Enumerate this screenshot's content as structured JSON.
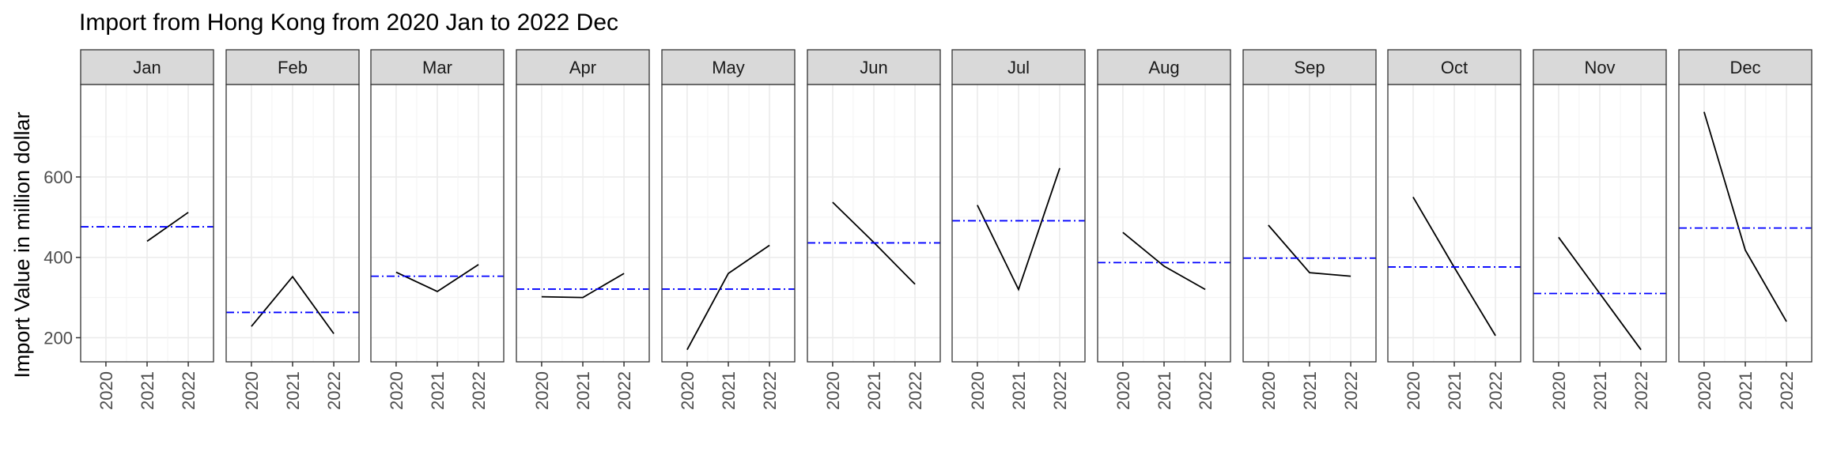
{
  "chart_data": {
    "type": "line",
    "title": "Import from Hong Kong from 2020 Jan to 2022 Dec",
    "ylabel": "Import Value in million dollar",
    "xlabel": "",
    "x": [
      "2020",
      "2021",
      "2022"
    ],
    "ylim": [
      140,
      830
    ],
    "yticks": [
      200,
      400,
      600
    ],
    "grid": true,
    "panels": [
      {
        "label": "Jan",
        "values": [
          null,
          440,
          512
        ],
        "mean": 476
      },
      {
        "label": "Feb",
        "values": [
          228,
          352,
          210
        ],
        "mean": 263
      },
      {
        "label": "Mar",
        "values": [
          363,
          315,
          382
        ],
        "mean": 353
      },
      {
        "label": "Apr",
        "values": [
          302,
          300,
          360
        ],
        "mean": 321
      },
      {
        "label": "May",
        "values": [
          170,
          360,
          430
        ],
        "mean": 321
      },
      {
        "label": "Jun",
        "values": [
          537,
          437,
          333
        ],
        "mean": 436
      },
      {
        "label": "Jul",
        "values": [
          530,
          320,
          622
        ],
        "mean": 491
      },
      {
        "label": "Aug",
        "values": [
          462,
          378,
          320
        ],
        "mean": 387
      },
      {
        "label": "Sep",
        "values": [
          480,
          362,
          353
        ],
        "mean": 398
      },
      {
        "label": "Oct",
        "values": [
          550,
          375,
          205
        ],
        "mean": 376
      },
      {
        "label": "Nov",
        "values": [
          450,
          310,
          170
        ],
        "mean": 310
      },
      {
        "label": "Dec",
        "values": [
          762,
          418,
          240
        ],
        "mean": 473
      }
    ],
    "series": [
      {
        "values_key": "values",
        "color": "#000000",
        "style": "solid"
      },
      {
        "values_key": "mean",
        "color": "#0000ff",
        "style": "dashdot"
      }
    ],
    "colors": {
      "strip_fill": "#d9d9d9",
      "panel_border": "#333333",
      "grid": "#ebebeb",
      "line": "#000000",
      "mean_line": "#0000ff",
      "text": "#000000",
      "tick_text": "#4d4d4d"
    }
  }
}
